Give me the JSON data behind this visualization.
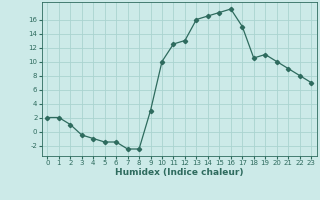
{
  "x": [
    0,
    1,
    2,
    3,
    4,
    5,
    6,
    7,
    8,
    9,
    10,
    11,
    12,
    13,
    14,
    15,
    16,
    17,
    18,
    19,
    20,
    21,
    22,
    23
  ],
  "y": [
    2,
    2,
    1,
    -0.5,
    -1,
    -1.5,
    -1.5,
    -2.5,
    -2.5,
    3,
    10,
    12.5,
    13,
    16,
    16.5,
    17,
    17.5,
    15,
    10.5,
    11,
    10,
    9,
    8,
    7
  ],
  "line_color": "#2e6b5e",
  "marker": "D",
  "marker_size": 2.2,
  "bg_color": "#cceae8",
  "grid_color": "#aad4d0",
  "xlabel": "Humidex (Indice chaleur)",
  "xlim": [
    -0.5,
    23.5
  ],
  "ylim": [
    -3.5,
    18.5
  ],
  "yticks": [
    -2,
    0,
    2,
    4,
    6,
    8,
    10,
    12,
    14,
    16
  ],
  "xticks": [
    0,
    1,
    2,
    3,
    4,
    5,
    6,
    7,
    8,
    9,
    10,
    11,
    12,
    13,
    14,
    15,
    16,
    17,
    18,
    19,
    20,
    21,
    22,
    23
  ]
}
